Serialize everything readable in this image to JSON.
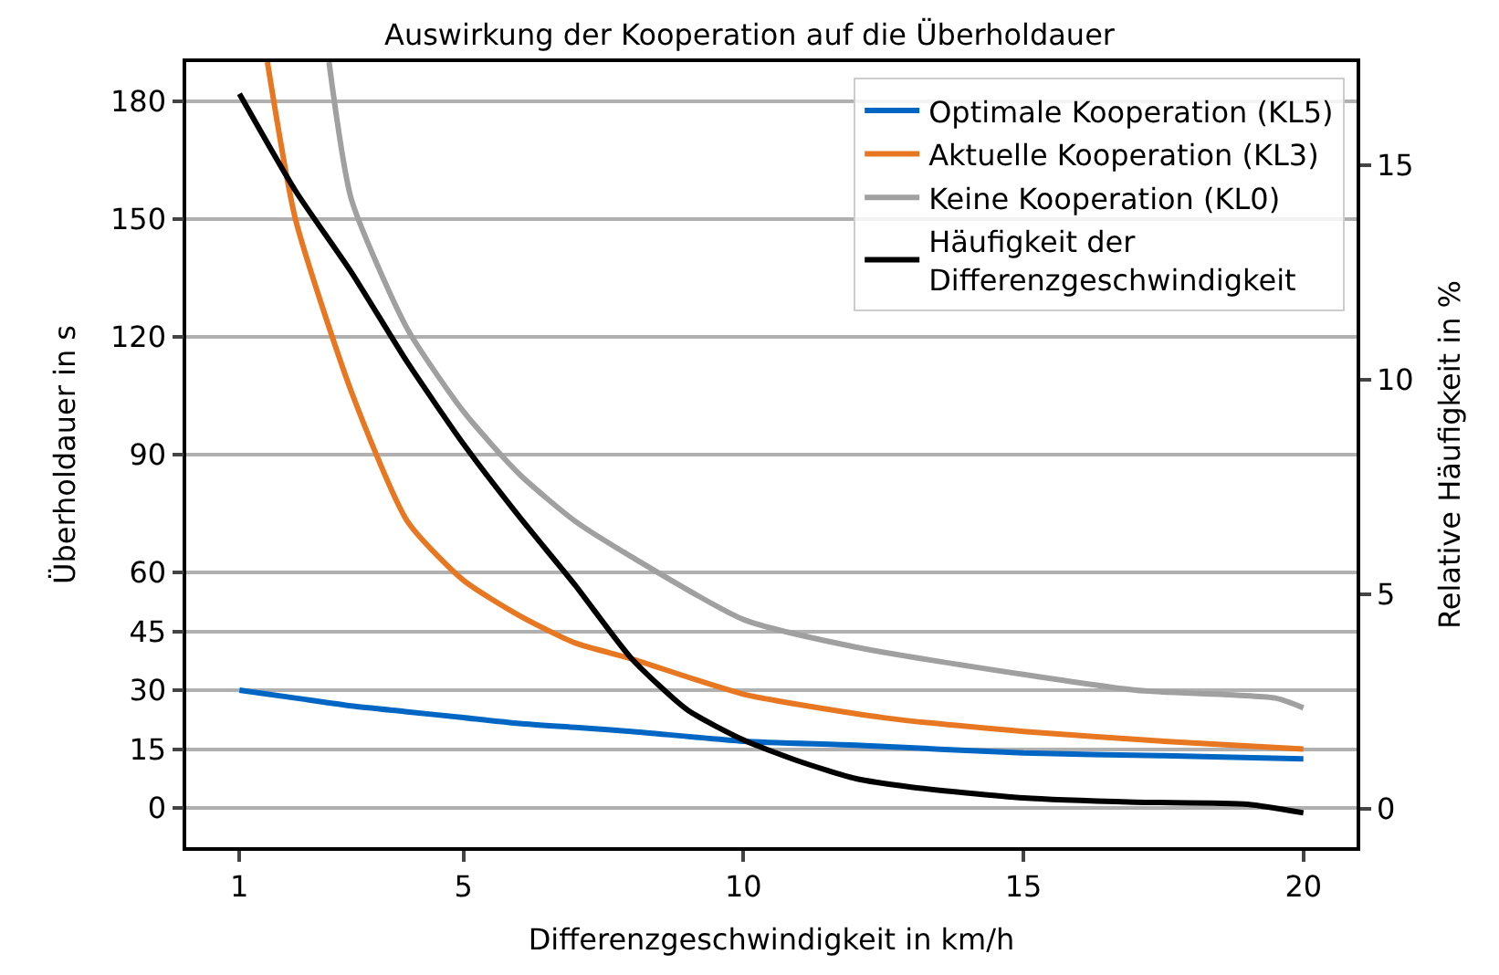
{
  "chart_data": {
    "type": "line",
    "title": "Auswirkung der Kooperation auf die Überholdauer",
    "xlabel": "Differenzgeschwindigkeit in km/h",
    "ylabel": "Überholdauer in s",
    "y2label": "Relative Häufigkeit in %",
    "xlim": [
      0.05,
      20.95
    ],
    "xticks": [
      1,
      5,
      10,
      15,
      20
    ],
    "ylim": [
      -10,
      190
    ],
    "yticks": [
      0,
      15,
      30,
      45,
      60,
      90,
      120,
      150,
      180
    ],
    "y2lim": [
      -0.9,
      17.4
    ],
    "y2ticks": [
      0,
      5,
      10,
      15
    ],
    "grid": "y",
    "legend": "top right",
    "marker": "none",
    "line_style": "solid",
    "series": [
      {
        "name": "Optimale Kooperation (KL5)",
        "color": "#0066c4",
        "x": [
          1,
          2,
          3,
          4,
          5,
          6,
          7,
          8,
          10,
          12,
          15,
          17.5,
          20
        ],
        "values": [
          30,
          28,
          26,
          24.5,
          23,
          21.5,
          20.5,
          19.5,
          17,
          16,
          14,
          13.3,
          12.5
        ]
      },
      {
        "name": "Aktuelle Kooperation (KL3)",
        "color": "#e87722",
        "x": [
          1.5,
          2,
          3,
          4,
          5,
          6,
          7,
          8,
          10,
          12.5,
          15,
          17.5,
          20
        ],
        "values": [
          190,
          150,
          106,
          73,
          58,
          49,
          42,
          38,
          29,
          23,
          19.5,
          17,
          15
        ]
      },
      {
        "name": "Keine Kooperation (KL0)",
        "color": "#a0a0a0",
        "x": [
          2.6,
          3,
          4,
          5,
          6,
          7,
          8,
          10,
          12,
          15,
          17,
          19.5,
          20
        ],
        "values": [
          190,
          155,
          122,
          101,
          85,
          73,
          64,
          48,
          41,
          34,
          30,
          28,
          25.5
        ]
      },
      {
        "name": "Häufigkeit der\nDifferenzgeschwindigkeit",
        "color": "#000000",
        "axis": "y2",
        "x": [
          1,
          2,
          3,
          4,
          5,
          6,
          7,
          8,
          9,
          10,
          11,
          12,
          13,
          15,
          17,
          19,
          20
        ],
        "values": [
          16.66,
          14.4,
          12.5,
          10.4,
          8.5,
          6.8,
          5.2,
          3.5,
          2.3,
          1.6,
          1.1,
          0.7,
          0.5,
          0.25,
          0.15,
          0.1,
          -0.1
        ]
      }
    ]
  }
}
